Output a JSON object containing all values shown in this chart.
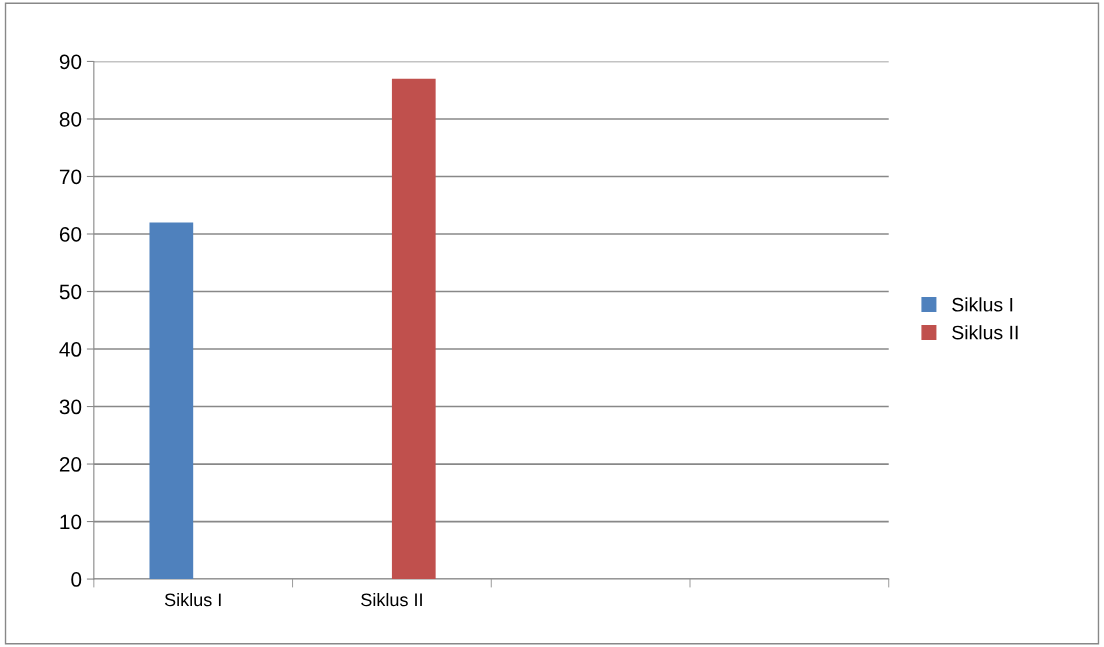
{
  "chart_data": {
    "type": "bar",
    "categories": [
      "Siklus I",
      "Siklus II",
      null,
      null
    ],
    "series": [
      {
        "name": "Siklus I",
        "color": "#4f81bd",
        "values": [
          62,
          null,
          null,
          null
        ]
      },
      {
        "name": "Siklus II",
        "color": "#c0504d",
        "values": [
          null,
          87,
          null,
          null
        ]
      }
    ],
    "ylim": [
      0,
      90
    ],
    "yticks": [
      0,
      10,
      20,
      30,
      40,
      50,
      60,
      70,
      80,
      90
    ],
    "grid": "y",
    "legend": "right"
  }
}
